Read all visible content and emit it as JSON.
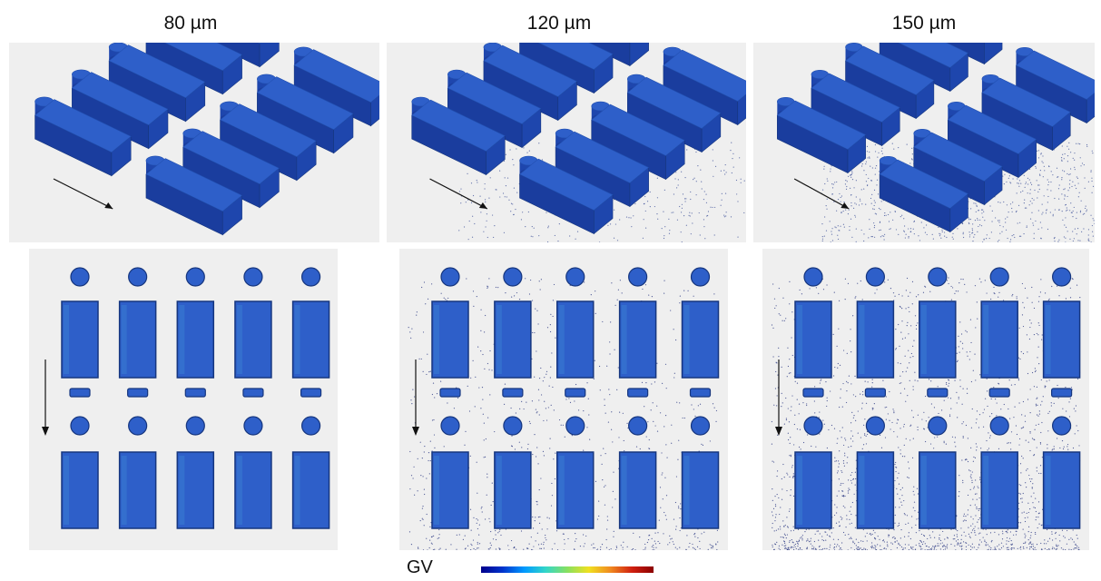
{
  "columns": [
    {
      "title": "80 µm",
      "particle_density": 0
    },
    {
      "title": "120 µm",
      "particle_density": 1
    },
    {
      "title": "150 µm",
      "particle_density": 2
    }
  ],
  "colorbar": {
    "label": "GV",
    "stops": [
      "#00008b",
      "#0033cc",
      "#0099ff",
      "#33d6c8",
      "#88e060",
      "#f0e020",
      "#f08a20",
      "#d02010",
      "#8b0000"
    ]
  },
  "colors": {
    "part_top": "#2e5fc9",
    "part_side": "#1e46ad",
    "part_front": "#1a3d9e",
    "part_highlight": "#3f8fd8",
    "panel_bg": "#efefef",
    "arrow": "#111111"
  }
}
